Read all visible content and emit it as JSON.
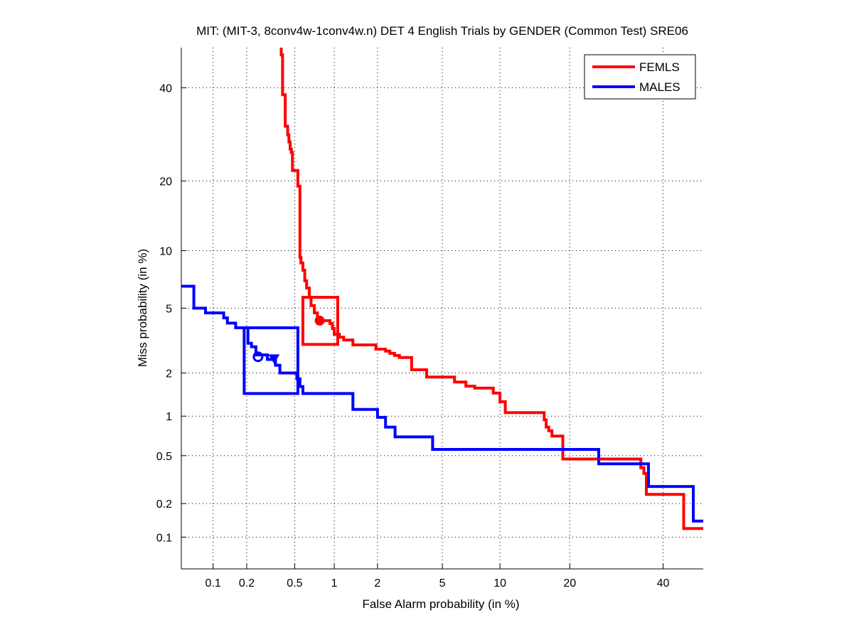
{
  "chart_data": {
    "type": "line",
    "scale": "normal-deviate (DET)",
    "title": "MIT: (MIT-3, 8conv4w-1conv4w.n) DET 4 English Trials by GENDER (Common Test) SRE06",
    "xlabel": "False Alarm probability (in %)",
    "ylabel": "Miss probability (in %)",
    "xlim": [
      0.05,
      50
    ],
    "ylim": [
      0.05,
      50
    ],
    "x_ticks": [
      0.1,
      0.2,
      0.5,
      1,
      2,
      5,
      10,
      20,
      40
    ],
    "x_tick_labels": [
      "0.1",
      "0.2",
      "0.5",
      "1",
      "2",
      "5",
      "10",
      "20",
      "40"
    ],
    "y_ticks": [
      0.1,
      0.2,
      0.5,
      1,
      2,
      5,
      10,
      20,
      40
    ],
    "y_tick_labels": [
      "0.1",
      "0.2",
      "0.5",
      "1",
      "2",
      "5",
      "10",
      "20",
      "40"
    ],
    "grid": true,
    "legend_position": "top-right",
    "series": [
      {
        "name": "FEMLS",
        "color": "#ff0000",
        "points": [
          [
            0.39,
            50
          ],
          [
            0.39,
            48.2
          ],
          [
            0.4,
            48.2
          ],
          [
            0.4,
            38.3
          ],
          [
            0.42,
            38.3
          ],
          [
            0.42,
            31.0
          ],
          [
            0.44,
            31.0
          ],
          [
            0.44,
            29.1
          ],
          [
            0.45,
            29.1
          ],
          [
            0.45,
            27.6
          ],
          [
            0.46,
            27.6
          ],
          [
            0.46,
            26.1
          ],
          [
            0.47,
            26.1
          ],
          [
            0.47,
            25.4
          ],
          [
            0.48,
            25.4
          ],
          [
            0.48,
            21.9
          ],
          [
            0.53,
            21.9
          ],
          [
            0.53,
            19.1
          ],
          [
            0.55,
            19.1
          ],
          [
            0.55,
            9.28
          ],
          [
            0.56,
            9.28
          ],
          [
            0.56,
            8.7
          ],
          [
            0.58,
            8.7
          ],
          [
            0.58,
            8.0
          ],
          [
            0.6,
            8.0
          ],
          [
            0.6,
            7.05
          ],
          [
            0.62,
            7.05
          ],
          [
            0.62,
            6.46
          ],
          [
            0.65,
            6.46
          ],
          [
            0.65,
            5.76
          ],
          [
            0.67,
            5.76
          ],
          [
            0.67,
            5.17
          ],
          [
            0.71,
            5.17
          ],
          [
            0.71,
            4.7
          ],
          [
            0.75,
            4.7
          ],
          [
            0.75,
            4.24
          ],
          [
            0.93,
            4.24
          ],
          [
            0.93,
            4.08
          ],
          [
            0.97,
            4.08
          ],
          [
            0.97,
            3.81
          ],
          [
            1.0,
            3.81
          ],
          [
            1.0,
            3.52
          ],
          [
            1.09,
            3.52
          ],
          [
            1.09,
            3.38
          ],
          [
            1.17,
            3.38
          ],
          [
            1.17,
            3.25
          ],
          [
            1.36,
            3.25
          ],
          [
            1.36,
            3.03
          ],
          [
            1.95,
            3.03
          ],
          [
            1.95,
            2.85
          ],
          [
            2.26,
            2.85
          ],
          [
            2.26,
            2.77
          ],
          [
            2.41,
            2.77
          ],
          [
            2.41,
            2.68
          ],
          [
            2.58,
            2.68
          ],
          [
            2.58,
            2.6
          ],
          [
            2.77,
            2.6
          ],
          [
            2.77,
            2.52
          ],
          [
            3.3,
            2.52
          ],
          [
            3.3,
            2.1
          ],
          [
            4.06,
            2.1
          ],
          [
            4.06,
            1.88
          ],
          [
            5.84,
            1.88
          ],
          [
            5.84,
            1.74
          ],
          [
            6.73,
            1.74
          ],
          [
            6.73,
            1.63
          ],
          [
            7.48,
            1.63
          ],
          [
            7.48,
            1.58
          ],
          [
            9.28,
            1.58
          ],
          [
            9.28,
            1.46
          ],
          [
            10.0,
            1.46
          ],
          [
            10.0,
            1.27
          ],
          [
            10.6,
            1.27
          ],
          [
            10.6,
            1.06
          ],
          [
            15.8,
            1.06
          ],
          [
            15.8,
            0.94
          ],
          [
            16.1,
            0.94
          ],
          [
            16.1,
            0.83
          ],
          [
            16.5,
            0.83
          ],
          [
            16.5,
            0.78
          ],
          [
            17.0,
            0.78
          ],
          [
            17.0,
            0.71
          ],
          [
            18.8,
            0.71
          ],
          [
            18.8,
            0.47
          ],
          [
            34.7,
            0.47
          ],
          [
            34.7,
            0.4
          ],
          [
            35.4,
            0.4
          ],
          [
            35.4,
            0.36
          ],
          [
            36.0,
            0.36
          ],
          [
            36.0,
            0.24
          ],
          [
            45.1,
            0.24
          ],
          [
            45.1,
            0.12
          ],
          [
            50,
            0.12
          ]
        ],
        "min_dcf_point": [
          0.78,
          4.24
        ],
        "confidence_box": {
          "fa": [
            0.58,
            1.06
          ],
          "miss": [
            3.05,
            5.75
          ]
        }
      },
      {
        "name": "MALES",
        "color": "#0000ff",
        "points": [
          [
            0.05,
            6.6
          ],
          [
            0.066,
            6.6
          ],
          [
            0.066,
            5.0
          ],
          [
            0.085,
            5.0
          ],
          [
            0.085,
            4.7
          ],
          [
            0.125,
            4.7
          ],
          [
            0.125,
            4.4
          ],
          [
            0.135,
            4.4
          ],
          [
            0.135,
            4.1
          ],
          [
            0.16,
            4.1
          ],
          [
            0.16,
            3.85
          ],
          [
            0.19,
            3.85
          ],
          [
            0.19,
            3.85
          ],
          [
            0.205,
            3.85
          ],
          [
            0.205,
            3.1
          ],
          [
            0.22,
            3.1
          ],
          [
            0.22,
            2.95
          ],
          [
            0.24,
            2.95
          ],
          [
            0.24,
            2.62
          ],
          [
            0.3,
            2.62
          ],
          [
            0.3,
            2.45
          ],
          [
            0.35,
            2.45
          ],
          [
            0.35,
            2.25
          ],
          [
            0.38,
            2.25
          ],
          [
            0.38,
            2.0
          ],
          [
            0.52,
            2.0
          ],
          [
            0.52,
            1.83
          ],
          [
            0.55,
            1.83
          ],
          [
            0.55,
            1.62
          ],
          [
            0.58,
            1.62
          ],
          [
            0.58,
            1.45
          ],
          [
            1.36,
            1.45
          ],
          [
            1.36,
            1.12
          ],
          [
            2.0,
            1.12
          ],
          [
            2.0,
            0.98
          ],
          [
            2.26,
            0.98
          ],
          [
            2.26,
            0.83
          ],
          [
            2.6,
            0.83
          ],
          [
            2.6,
            0.7
          ],
          [
            4.4,
            0.7
          ],
          [
            4.4,
            0.56
          ],
          [
            25.5,
            0.56
          ],
          [
            25.5,
            0.43
          ],
          [
            36.5,
            0.43
          ],
          [
            36.5,
            0.28
          ],
          [
            47.5,
            0.28
          ],
          [
            47.5,
            0.14
          ],
          [
            50,
            0.14
          ]
        ],
        "min_dcf_point": [
          0.25,
          2.55
        ],
        "act_dcf_point": [
          0.34,
          2.48
        ],
        "confidence_box": {
          "fa": [
            0.19,
            0.53
          ],
          "miss": [
            1.45,
            3.85
          ]
        }
      }
    ]
  }
}
